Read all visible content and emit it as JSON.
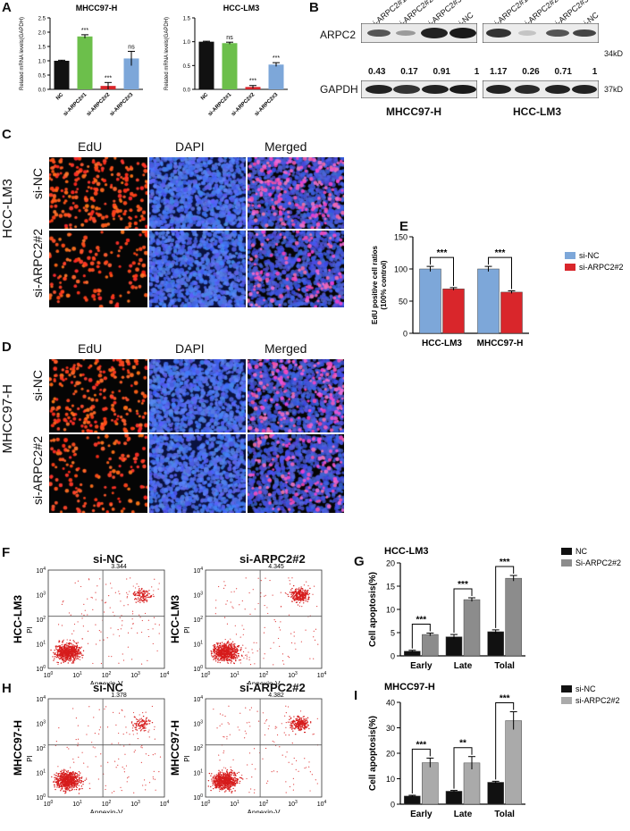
{
  "panel_letters": {
    "a": "A",
    "b": "B",
    "c": "C",
    "d": "D",
    "e": "E",
    "f": "F",
    "g": "G",
    "h": "H",
    "i": "I"
  },
  "colors": {
    "black": "#111111",
    "green": "#6cbf4b",
    "red": "#d9262b",
    "blue": "#7da7d9",
    "gray": "#8c8c8c",
    "edu": "#ff3b1f",
    "dapi": "#3a57d6"
  },
  "western": {
    "lanes_left": [
      "si-ARPC2#1",
      "si-ARPC2#2",
      "si-ARPC2#3",
      "si-NC"
    ],
    "lanes_right": [
      "si-ARPC2#1",
      "si-ARPC2#2",
      "si-ARPC2#3",
      "si-NC"
    ],
    "row1": "ARPC2",
    "row2": "GAPDH",
    "ratios_left": [
      "0.43",
      "0.17",
      "0.91",
      "1"
    ],
    "ratios_right": [
      "1.17",
      "0.26",
      "0.71",
      "1"
    ],
    "mw1": "34kD",
    "mw2": "37kD",
    "cell_left": "MHCC97-H",
    "cell_right": "HCC-LM3"
  },
  "micro": {
    "cols": [
      "EdU",
      "DAPI",
      "Merged"
    ],
    "c_rows": [
      "si-NC",
      "si-ARPC2#2"
    ],
    "c_group": "HCC-LM3",
    "d_cols": [
      "EdU",
      "DAPI",
      "Merged"
    ],
    "d_rows": [
      "si-NC",
      "si-ARPC2#2"
    ],
    "d_group": "MHCC97-H"
  },
  "flow": {
    "f_titles": [
      "si-NC",
      "si-ARPC2#2"
    ],
    "f_values": [
      "3.344",
      "4.345"
    ],
    "f_cell": "HCC-LM3",
    "h_titles": [
      "si-NC",
      "si-ARPC2#2"
    ],
    "h_values": [
      "1.378",
      "4.382"
    ],
    "h_cell": "MHCC97-H",
    "ylabel": "PI",
    "xlabel": "Annexin-V",
    "ticks": [
      "10",
      "0",
      "1",
      "2",
      "3",
      "4"
    ]
  },
  "chart_data": [
    {
      "id": "A1",
      "type": "bar",
      "title": "MHCC97-H",
      "ylabel": "Related mRNA levels(GAPDH)",
      "categories": [
        "NC",
        "si-ARPC2#1",
        "si-ARPC2#2",
        "si-ARPC2#3"
      ],
      "values": [
        1.0,
        1.85,
        0.12,
        1.08
      ],
      "errors": [
        0.02,
        0.06,
        0.12,
        0.25
      ],
      "annotations": [
        "",
        "***",
        "***",
        "ns"
      ],
      "ylim": [
        0,
        2.5
      ],
      "yticks": [
        0,
        0.5,
        1.0,
        1.5,
        2.0,
        2.5
      ],
      "ytick_labels": [
        "0.0",
        "0.5",
        "1.0",
        "1.5",
        "2.0",
        "2.5"
      ],
      "colors": [
        "#111111",
        "#6cbf4b",
        "#d9262b",
        "#7da7d9"
      ]
    },
    {
      "id": "A2",
      "type": "bar",
      "title": "HCC-LM3",
      "ylabel": "Related mRNA levels(GAPDH)",
      "categories": [
        "NC",
        "si-ARPC2#1",
        "si-ARPC2#2",
        "si-ARPC2#3"
      ],
      "values": [
        1.0,
        0.97,
        0.05,
        0.52
      ],
      "errors": [
        0.01,
        0.02,
        0.03,
        0.04
      ],
      "annotations": [
        "",
        "ns",
        "***",
        "***"
      ],
      "ylim": [
        0,
        1.5
      ],
      "yticks": [
        0,
        0.5,
        1.0,
        1.5
      ],
      "ytick_labels": [
        "0.0",
        "0.5",
        "1.0",
        "1.5"
      ],
      "colors": [
        "#111111",
        "#6cbf4b",
        "#d9262b",
        "#7da7d9"
      ]
    },
    {
      "id": "E",
      "type": "bar",
      "title": "",
      "ylabel": "EdU positive cell ratios (100% control)",
      "categories": [
        "HCC-LM3",
        "MHCC97-H"
      ],
      "series": [
        {
          "name": "si-NC",
          "values": [
            100,
            100
          ],
          "errors": [
            4,
            4
          ],
          "color": "#7da7d9"
        },
        {
          "name": "si-ARPC2#2",
          "values": [
            69,
            64
          ],
          "errors": [
            2,
            2
          ],
          "color": "#d9262b"
        }
      ],
      "annotations": [
        "***",
        "***"
      ],
      "ylim": [
        0,
        150
      ],
      "yticks": [
        0,
        50,
        100,
        150
      ],
      "ytick_labels": [
        "0",
        "50",
        "100",
        "150"
      ]
    },
    {
      "id": "G",
      "type": "bar",
      "title": "HCC-LM3",
      "ylabel": "Cell apoptosis(%)",
      "categories": [
        "Early",
        "Late",
        "Tolal"
      ],
      "series": [
        {
          "name": "NC",
          "values": [
            1.0,
            4.1,
            5.2
          ],
          "errors": [
            0.2,
            0.5,
            0.4
          ],
          "color": "#111111"
        },
        {
          "name": "Si-ARPC2#2",
          "values": [
            4.6,
            12.1,
            16.7
          ],
          "errors": [
            0.3,
            0.4,
            0.6
          ],
          "color": "#8c8c8c"
        }
      ],
      "annotations": [
        "***",
        "***",
        "***"
      ],
      "ylim": [
        0,
        20
      ],
      "yticks": [
        0,
        5,
        10,
        15,
        20
      ],
      "ytick_labels": [
        "0",
        "5",
        "10",
        "15",
        "20"
      ]
    },
    {
      "id": "I",
      "type": "bar",
      "title": "MHCC97-H",
      "ylabel": "Cell apoptosis(%)",
      "categories": [
        "Early",
        "Late",
        "Tolal"
      ],
      "series": [
        {
          "name": "si-NC",
          "values": [
            3.2,
            5.1,
            8.6
          ],
          "errors": [
            0.3,
            0.3,
            0.4
          ],
          "color": "#111111"
        },
        {
          "name": "si-ARPC2#2",
          "values": [
            16.3,
            16.2,
            32.8
          ],
          "errors": [
            1.8,
            2.5,
            3.5
          ],
          "color": "#aaaaaa"
        }
      ],
      "annotations": [
        "***",
        "**",
        "***"
      ],
      "ylim": [
        0,
        40
      ],
      "yticks": [
        0,
        10,
        20,
        30,
        40
      ],
      "ytick_labels": [
        "0",
        "10",
        "20",
        "30",
        "40"
      ]
    }
  ]
}
